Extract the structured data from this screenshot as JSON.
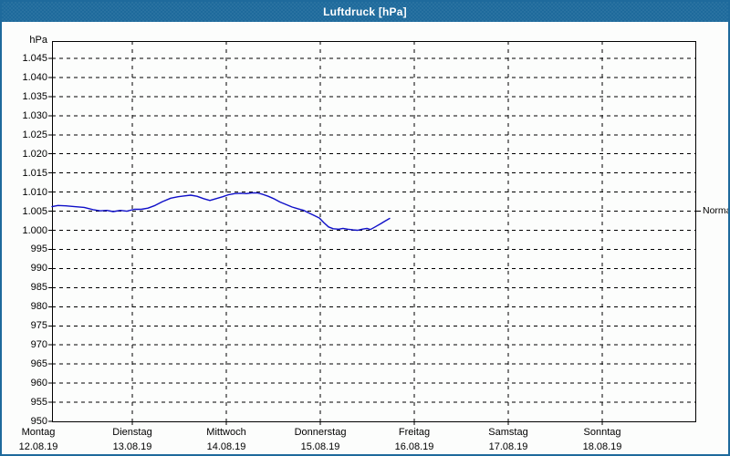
{
  "window": {
    "title": "Luftdruck [hPa]"
  },
  "colors": {
    "chrome": "#1e6a9c",
    "background": "#fcfdfc",
    "grid": "#000000",
    "text": "#000000",
    "title_text": "#ffffff",
    "line": "#0f0fc8"
  },
  "chart_data": {
    "type": "line",
    "title": "Luftdruck [hPa]",
    "y_unit_label": "hPa",
    "ylabel": "hPa",
    "ylim": [
      950,
      1049.5
    ],
    "y_tick_step": 5,
    "grid": "dashed",
    "legend_position": "none",
    "y_ticks": [
      {
        "value": 1045,
        "label": "1.045"
      },
      {
        "value": 1040,
        "label": "1.040"
      },
      {
        "value": 1035,
        "label": "1.035"
      },
      {
        "value": 1030,
        "label": "1.030"
      },
      {
        "value": 1025,
        "label": "1.025"
      },
      {
        "value": 1020,
        "label": "1.020"
      },
      {
        "value": 1015,
        "label": "1.015"
      },
      {
        "value": 1010,
        "label": "1.010"
      },
      {
        "value": 1005,
        "label": "1.005"
      },
      {
        "value": 1000,
        "label": "1.000"
      },
      {
        "value": 995,
        "label": "995"
      },
      {
        "value": 990,
        "label": "990"
      },
      {
        "value": 985,
        "label": "985"
      },
      {
        "value": 980,
        "label": "980"
      },
      {
        "value": 975,
        "label": "975"
      },
      {
        "value": 970,
        "label": "970"
      },
      {
        "value": 965,
        "label": "965"
      },
      {
        "value": 960,
        "label": "960"
      },
      {
        "value": 955,
        "label": "955"
      },
      {
        "value": 950,
        "label": "950"
      }
    ],
    "x_axis": {
      "hours_range": [
        0,
        168
      ],
      "days": [
        {
          "name": "Montag",
          "date": "12.08.19"
        },
        {
          "name": "Dienstag",
          "date": "13.08.19"
        },
        {
          "name": "Mittwoch",
          "date": "14.08.19"
        },
        {
          "name": "Donnerstag",
          "date": "15.08.19"
        },
        {
          "name": "Freitag",
          "date": "16.08.19"
        },
        {
          "name": "Samstag",
          "date": "17.08.19"
        },
        {
          "name": "Sonntag",
          "date": "18.08.19"
        }
      ]
    },
    "reference_marker": {
      "label": "Normal",
      "value": 1005
    },
    "series": [
      {
        "name": "Luftdruck",
        "color": "#0f0fc8",
        "points_hours_hpa": [
          [
            3.5,
            1006.2
          ],
          [
            5,
            1006.5
          ],
          [
            7,
            1006.4
          ],
          [
            9.3,
            1006.2
          ],
          [
            11.7,
            1006.0
          ],
          [
            14,
            1005.4
          ],
          [
            15.8,
            1005.1
          ],
          [
            17.5,
            1005.2
          ],
          [
            19.1,
            1004.9
          ],
          [
            21,
            1005.2
          ],
          [
            22.6,
            1005.0
          ],
          [
            24.5,
            1005.5
          ],
          [
            26.3,
            1005.5
          ],
          [
            28,
            1005.8
          ],
          [
            29.8,
            1006.5
          ],
          [
            31.7,
            1007.5
          ],
          [
            33.8,
            1008.4
          ],
          [
            35.7,
            1008.8
          ],
          [
            37.3,
            1009.0
          ],
          [
            38.9,
            1009.2
          ],
          [
            40.5,
            1008.9
          ],
          [
            42.2,
            1008.3
          ],
          [
            43.8,
            1007.8
          ],
          [
            45.4,
            1008.3
          ],
          [
            47.1,
            1008.8
          ],
          [
            48.5,
            1009.3
          ],
          [
            50.1,
            1009.6
          ],
          [
            51.7,
            1009.7
          ],
          [
            53.1,
            1009.6
          ],
          [
            54.5,
            1009.8
          ],
          [
            55.9,
            1009.8
          ],
          [
            57.3,
            1009.4
          ],
          [
            58.7,
            1008.9
          ],
          [
            60.1,
            1008.3
          ],
          [
            61.7,
            1007.4
          ],
          [
            63.4,
            1006.7
          ],
          [
            64.8,
            1006.1
          ],
          [
            66.4,
            1005.6
          ],
          [
            67.8,
            1005.2
          ],
          [
            69.2,
            1004.5
          ],
          [
            70.6,
            1003.8
          ],
          [
            71.8,
            1003.2
          ],
          [
            72.9,
            1002.0
          ],
          [
            74.1,
            1000.9
          ],
          [
            75.3,
            1000.4
          ],
          [
            76.7,
            1000.3
          ],
          [
            77.8,
            1000.5
          ],
          [
            79,
            1000.3
          ],
          [
            80.4,
            1000.1
          ],
          [
            81.5,
            1000.0
          ],
          [
            82.7,
            1000.3
          ],
          [
            83.9,
            1000.5
          ],
          [
            84.8,
            1000.2
          ],
          [
            86,
            1000.9
          ],
          [
            87.4,
            1001.7
          ],
          [
            88.5,
            1002.4
          ],
          [
            89.7,
            1003.1
          ]
        ]
      }
    ]
  }
}
